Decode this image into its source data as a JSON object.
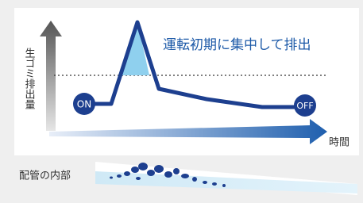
{
  "diagram": {
    "y_axis_label": "生ゴミ排出量",
    "x_axis_label": "時間",
    "annotation": "運転初期に集中して排出",
    "start_label": "ON",
    "end_label": "OFF",
    "pipe_label": "配管の内部"
  }
}
